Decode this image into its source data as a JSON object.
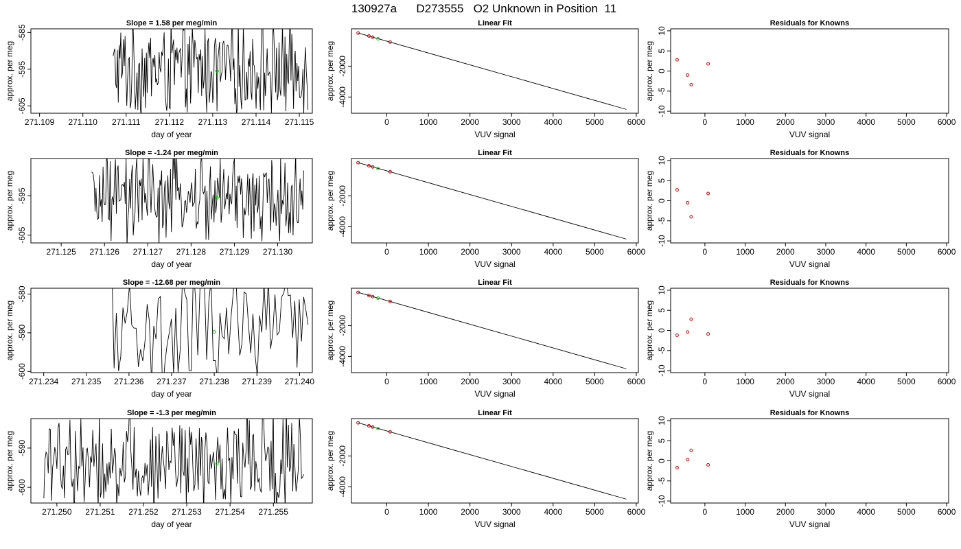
{
  "page_title": "130927a      D273555   O2 Unknown in Position  11",
  "colors": {
    "trace": "#000000",
    "unknown_point": "#00cc00",
    "known_point": "#cc0000",
    "frame": "#000000"
  },
  "chart_data": [
    {
      "panel": "timeseries-1",
      "type": "line",
      "title": "Slope =  1.58  per meg/min",
      "xlabel": "day of year",
      "ylabel": "approx. per meg",
      "xlim": [
        271.1088,
        271.1153
      ],
      "ylim": [
        -607,
        -584
      ],
      "xticks": [
        "271.109",
        "271.110",
        "271.111",
        "271.112",
        "271.113",
        "271.114",
        "271.115"
      ],
      "yticks": [
        "-585",
        "-595",
        "-605"
      ],
      "highlight": {
        "x": 271.1131,
        "y": -595.5
      },
      "trace": {
        "x_start": 271.1107,
        "x_end": 271.1152,
        "center": -595,
        "amplitude": 11,
        "n_points": 230
      }
    },
    {
      "panel": "linear-fit-1",
      "type": "scatter",
      "title": "Linear Fit",
      "xlabel": "VUV signal",
      "ylabel": "approx. per meg",
      "xlim": [
        -850,
        6050
      ],
      "ylim": [
        -5050,
        420
      ],
      "xticks": [
        "0",
        "1000",
        "2000",
        "3000",
        "4000",
        "5000",
        "6000"
      ],
      "yticks": [
        "-2000",
        "-4000"
      ],
      "fit_line": {
        "x": [
          -690,
          5760
        ],
        "y": [
          150,
          -4800
        ]
      },
      "known_points": [
        {
          "x": -690,
          "y": 150
        },
        {
          "x": -430,
          "y": -45
        },
        {
          "x": -340,
          "y": -125
        },
        {
          "x": 80,
          "y": -435
        }
      ],
      "unknown_points": [
        {
          "x": -210,
          "y": -225
        }
      ]
    },
    {
      "panel": "residuals-1",
      "type": "scatter",
      "title": "Residuals for Knowns",
      "xlabel": "VUV signal",
      "ylabel": "approx. per meg",
      "xlim": [
        -850,
        6050
      ],
      "ylim": [
        -10.5,
        10.5
      ],
      "xticks": [
        "0",
        "1000",
        "2000",
        "3000",
        "4000",
        "5000",
        "6000"
      ],
      "yticks": [
        "10",
        "5",
        "0",
        "-5",
        "-10"
      ],
      "points": [
        {
          "x": -690,
          "y": 2.8
        },
        {
          "x": -430,
          "y": -1.0
        },
        {
          "x": -340,
          "y": -3.4
        },
        {
          "x": 80,
          "y": 1.8
        }
      ]
    },
    {
      "panel": "timeseries-2",
      "type": "line",
      "title": "Slope =  -1.24  per meg/min",
      "xlabel": "day of year",
      "ylabel": "approx. per meg",
      "xlim": [
        271.1243,
        271.1308
      ],
      "ylim": [
        -607,
        -585.5
      ],
      "xticks": [
        "271.125",
        "271.126",
        "271.127",
        "271.128",
        "271.129",
        "271.130"
      ],
      "yticks": [
        "-595",
        "-605"
      ],
      "highlight": {
        "x": 271.1286,
        "y": -595.5
      },
      "trace": {
        "x_start": 271.1257,
        "x_end": 271.1306,
        "center": -596,
        "amplitude": 10,
        "n_points": 240
      }
    },
    {
      "panel": "linear-fit-2",
      "type": "scatter",
      "title": "Linear Fit",
      "xlabel": "VUV signal",
      "ylabel": "approx. per meg",
      "xlim": [
        -850,
        6050
      ],
      "ylim": [
        -5050,
        420
      ],
      "xticks": [
        "0",
        "1000",
        "2000",
        "3000",
        "4000",
        "5000",
        "6000"
      ],
      "yticks": [
        "-2000",
        "-4000"
      ],
      "fit_line": {
        "x": [
          -690,
          5760
        ],
        "y": [
          150,
          -4800
        ]
      },
      "known_points": [
        {
          "x": -690,
          "y": 150
        },
        {
          "x": -430,
          "y": -45
        },
        {
          "x": -340,
          "y": -125
        },
        {
          "x": 80,
          "y": -435
        }
      ],
      "unknown_points": [
        {
          "x": -210,
          "y": -225
        }
      ]
    },
    {
      "panel": "residuals-2",
      "type": "scatter",
      "title": "Residuals for Knowns",
      "xlabel": "VUV signal",
      "ylabel": "approx. per meg",
      "xlim": [
        -850,
        6050
      ],
      "ylim": [
        -10.5,
        10.5
      ],
      "xticks": [
        "0",
        "1000",
        "2000",
        "3000",
        "4000",
        "5000",
        "6000"
      ],
      "yticks": [
        "10",
        "5",
        "0",
        "-5",
        "-10"
      ],
      "points": [
        {
          "x": -690,
          "y": 2.7
        },
        {
          "x": -430,
          "y": -0.5
        },
        {
          "x": -340,
          "y": -4.0
        },
        {
          "x": 80,
          "y": 1.8
        }
      ]
    },
    {
      "panel": "timeseries-3",
      "type": "line",
      "title": "Slope =  -12.68  per meg/min",
      "xlabel": "day of year",
      "ylabel": "approx. per meg",
      "xlim": [
        271.2337,
        271.2403
      ],
      "ylim": [
        -600.3,
        -578.5
      ],
      "xticks": [
        "271.234",
        "271.235",
        "271.236",
        "271.237",
        "271.238",
        "271.239",
        "271.240"
      ],
      "yticks": [
        "-580",
        "-590",
        "-600"
      ],
      "highlight": {
        "x": 271.238,
        "y": -589.8
      },
      "trace": {
        "x_start": 271.2356,
        "x_end": 271.2402,
        "center": -590,
        "amplitude": 14,
        "n_points": 90
      }
    },
    {
      "panel": "linear-fit-3",
      "type": "scatter",
      "title": "Linear Fit",
      "xlabel": "VUV signal",
      "ylabel": "approx. per meg",
      "xlim": [
        -850,
        6050
      ],
      "ylim": [
        -5050,
        420
      ],
      "xticks": [
        "0",
        "1000",
        "2000",
        "3000",
        "4000",
        "5000",
        "6000"
      ],
      "yticks": [
        "-2000",
        "-4000"
      ],
      "fit_line": {
        "x": [
          -690,
          5760
        ],
        "y": [
          150,
          -4800
        ]
      },
      "known_points": [
        {
          "x": -690,
          "y": 150
        },
        {
          "x": -430,
          "y": -45
        },
        {
          "x": -340,
          "y": -125
        },
        {
          "x": 80,
          "y": -435
        }
      ],
      "unknown_points": [
        {
          "x": -210,
          "y": -225
        }
      ]
    },
    {
      "panel": "residuals-3",
      "type": "scatter",
      "title": "Residuals for Knowns",
      "xlabel": "VUV signal",
      "ylabel": "approx. per meg",
      "xlim": [
        -850,
        6050
      ],
      "ylim": [
        -10.5,
        10.5
      ],
      "xticks": [
        "0",
        "1000",
        "2000",
        "3000",
        "4000",
        "5000",
        "6000"
      ],
      "yticks": [
        "10",
        "5",
        "0",
        "-5",
        "-10"
      ],
      "points": [
        {
          "x": -690,
          "y": -1.2
        },
        {
          "x": -430,
          "y": -0.4
        },
        {
          "x": -340,
          "y": 2.8
        },
        {
          "x": 80,
          "y": -0.9
        }
      ]
    },
    {
      "panel": "timeseries-4",
      "type": "line",
      "title": "Slope =  -1.3  per meg/min",
      "xlabel": "day of year",
      "ylabel": "approx. per meg",
      "xlim": [
        271.2494,
        271.2559
      ],
      "ylim": [
        -604,
        -582.5
      ],
      "xticks": [
        "271.250",
        "271.251",
        "271.252",
        "271.253",
        "271.254",
        "271.255"
      ],
      "yticks": [
        "-590",
        "-600"
      ],
      "highlight": {
        "x": 271.2537,
        "y": -594
      },
      "trace": {
        "x_start": 271.2497,
        "x_end": 271.2557,
        "center": -593,
        "amplitude": 12,
        "n_points": 240
      }
    },
    {
      "panel": "linear-fit-4",
      "type": "scatter",
      "title": "Linear Fit",
      "xlabel": "VUV signal",
      "ylabel": "approx. per meg",
      "xlim": [
        -850,
        6050
      ],
      "ylim": [
        -5050,
        420
      ],
      "xticks": [
        "0",
        "1000",
        "2000",
        "3000",
        "4000",
        "5000",
        "6000"
      ],
      "yticks": [
        "-2000",
        "-4000"
      ],
      "fit_line": {
        "x": [
          -690,
          5760
        ],
        "y": [
          150,
          -4800
        ]
      },
      "known_points": [
        {
          "x": -690,
          "y": 150
        },
        {
          "x": -430,
          "y": -45
        },
        {
          "x": -340,
          "y": -125
        },
        {
          "x": 80,
          "y": -435
        }
      ],
      "unknown_points": [
        {
          "x": -210,
          "y": -225
        }
      ]
    },
    {
      "panel": "residuals-4",
      "type": "scatter",
      "title": "Residuals for Knowns",
      "xlabel": "VUV signal",
      "ylabel": "approx. per meg",
      "xlim": [
        -850,
        6050
      ],
      "ylim": [
        -10.5,
        10.5
      ],
      "xticks": [
        "0",
        "1000",
        "2000",
        "3000",
        "4000",
        "5000",
        "6000"
      ],
      "yticks": [
        "10",
        "5",
        "0",
        "-5",
        "-10"
      ],
      "points": [
        {
          "x": -690,
          "y": -1.7
        },
        {
          "x": -430,
          "y": 0.3
        },
        {
          "x": -340,
          "y": 2.6
        },
        {
          "x": 80,
          "y": -1.0
        }
      ]
    }
  ]
}
